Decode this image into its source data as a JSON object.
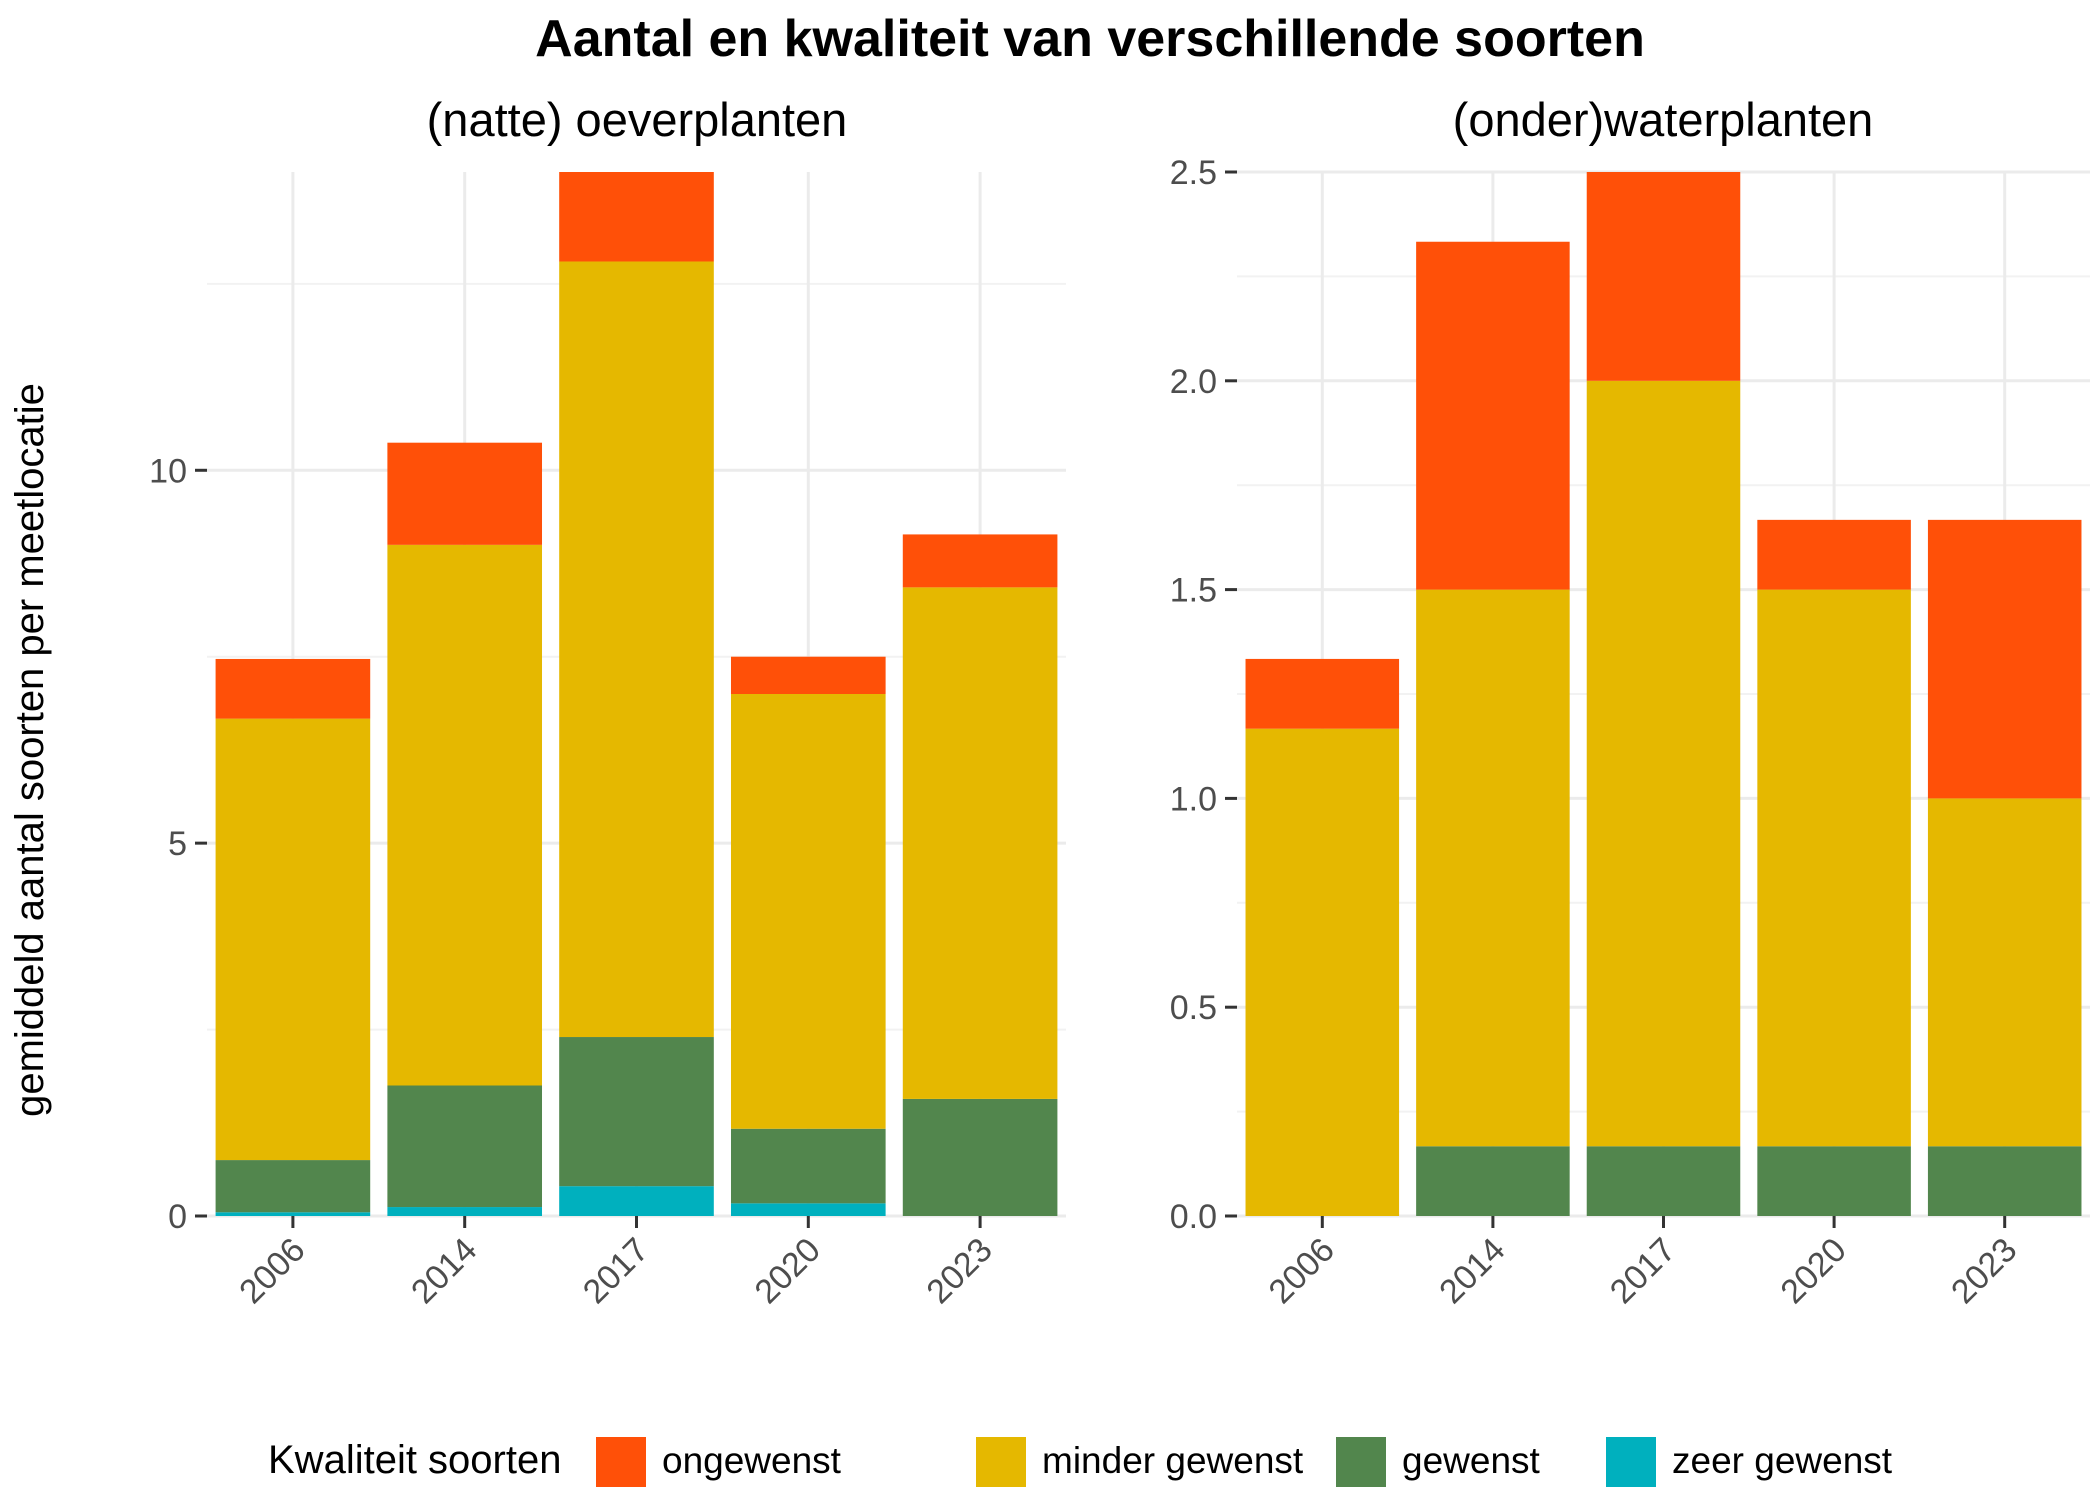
{
  "chart_data": {
    "type": "bar",
    "stacked": true,
    "title": "Aantal en kwaliteit van verschillende soorten",
    "ylabel": "gemiddeld aantal soorten per meetlocatie",
    "legend": {
      "title": "Kwaliteit soorten",
      "placement": "bottom",
      "items": [
        {
          "name": "ongewenst",
          "color": "#FF5008"
        },
        {
          "name": "minder gewenst",
          "color": "#E5B800"
        },
        {
          "name": "gewenst",
          "color": "#52864D"
        },
        {
          "name": "zeer gewenst",
          "color": "#00B0BE"
        }
      ]
    },
    "panels": [
      {
        "subtitle": "(natte) oeverplanten",
        "categories": [
          "2006",
          "2014",
          "2017",
          "2020",
          "2023"
        ],
        "ylim": [
          0,
          14
        ],
        "yticks": [
          0,
          5,
          10
        ],
        "ytick_labels": [
          "0",
          "5",
          "10"
        ],
        "grid": true,
        "series": [
          {
            "name": "zeer gewenst",
            "values": [
              0.05,
              0.12,
              0.4,
              0.17,
              0
            ]
          },
          {
            "name": "gewenst",
            "values": [
              0.7,
              1.63,
              2.0,
              1.0,
              1.57
            ]
          },
          {
            "name": "minder gewenst",
            "values": [
              5.92,
              7.25,
              10.4,
              5.83,
              6.86
            ]
          },
          {
            "name": "ongewenst",
            "values": [
              0.8,
              1.37,
              1.2,
              0.5,
              0.71
            ]
          }
        ]
      },
      {
        "subtitle": "(onder)waterplanten",
        "categories": [
          "2006",
          "2014",
          "2017",
          "2020",
          "2023"
        ],
        "ylim": [
          0,
          2.5
        ],
        "yticks": [
          0,
          0.5,
          1.0,
          1.5,
          2.0,
          2.5
        ],
        "ytick_labels": [
          "0.0",
          "0.5",
          "1.0",
          "1.5",
          "2.0",
          "2.5"
        ],
        "grid": true,
        "series": [
          {
            "name": "zeer gewenst",
            "values": [
              0,
              0,
              0,
              0,
              0
            ]
          },
          {
            "name": "gewenst",
            "values": [
              0,
              0.167,
              0.167,
              0.167,
              0.167
            ]
          },
          {
            "name": "minder gewenst",
            "values": [
              1.167,
              1.333,
              1.833,
              1.333,
              0.833
            ]
          },
          {
            "name": "ongewenst",
            "values": [
              0.167,
              0.833,
              0.5,
              0.167,
              0.667
            ]
          }
        ]
      }
    ]
  }
}
